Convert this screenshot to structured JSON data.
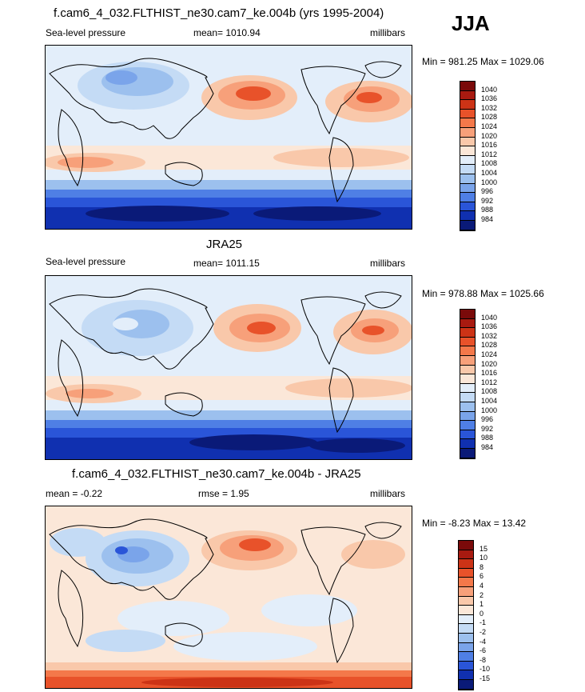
{
  "season": "JJA",
  "panels": [
    {
      "title": "f.cam6_4_032.FLTHIST_ne30.cam7_ke.004b (yrs 1995-2004)",
      "left_label": "Sea-level pressure",
      "center_label": "mean= 1010.94",
      "right_label": "millibars",
      "minmax": "Min = 981.25 Max = 1029.06",
      "levels": [
        "1040",
        "1036",
        "1032",
        "1028",
        "1024",
        "1020",
        "1016",
        "1012",
        "1008",
        "1004",
        "1000",
        "996",
        "992",
        "988",
        "984"
      ],
      "colors": [
        "#7a0a0a",
        "#a81a10",
        "#cc3316",
        "#e8522a",
        "#f4784a",
        "#f7a07a",
        "#f9c8aa",
        "#fbe7d8",
        "#e3eefa",
        "#c4dbf5",
        "#9cc0ee",
        "#7aa4ea",
        "#4f7fe5",
        "#2a55d8",
        "#1030b0",
        "#0a1a78"
      ]
    },
    {
      "title": "JRA25",
      "left_label": "Sea-level pressure",
      "center_label": "mean= 1011.15",
      "right_label": "millibars",
      "minmax": "Min = 978.88 Max = 1025.66",
      "levels": [
        "1040",
        "1036",
        "1032",
        "1028",
        "1024",
        "1020",
        "1016",
        "1012",
        "1008",
        "1004",
        "1000",
        "996",
        "992",
        "988",
        "984"
      ],
      "colors": [
        "#7a0a0a",
        "#a81a10",
        "#cc3316",
        "#e8522a",
        "#f4784a",
        "#f7a07a",
        "#f9c8aa",
        "#fbe7d8",
        "#e3eefa",
        "#c4dbf5",
        "#9cc0ee",
        "#7aa4ea",
        "#4f7fe5",
        "#2a55d8",
        "#1030b0",
        "#0a1a78"
      ]
    },
    {
      "title": "f.cam6_4_032.FLTHIST_ne30.cam7_ke.004b - JRA25",
      "left_label": "mean =  -0.22",
      "center_label": "rmse =   1.95",
      "right_label": "millibars",
      "minmax": "Min =  -8.23 Max =  13.42",
      "levels": [
        "15",
        "10",
        "8",
        "6",
        "4",
        "2",
        "1",
        "0",
        "-1",
        "-2",
        "-4",
        "-6",
        "-8",
        "-10",
        "-15"
      ],
      "colors": [
        "#7a0a0a",
        "#a81a10",
        "#cc3316",
        "#e8522a",
        "#f4784a",
        "#f7a07a",
        "#f9c8aa",
        "#fbe7d8",
        "#e3eefa",
        "#c4dbf5",
        "#9cc0ee",
        "#7aa4ea",
        "#4f7fe5",
        "#2a55d8",
        "#1030b0",
        "#0a1a78"
      ]
    }
  ]
}
